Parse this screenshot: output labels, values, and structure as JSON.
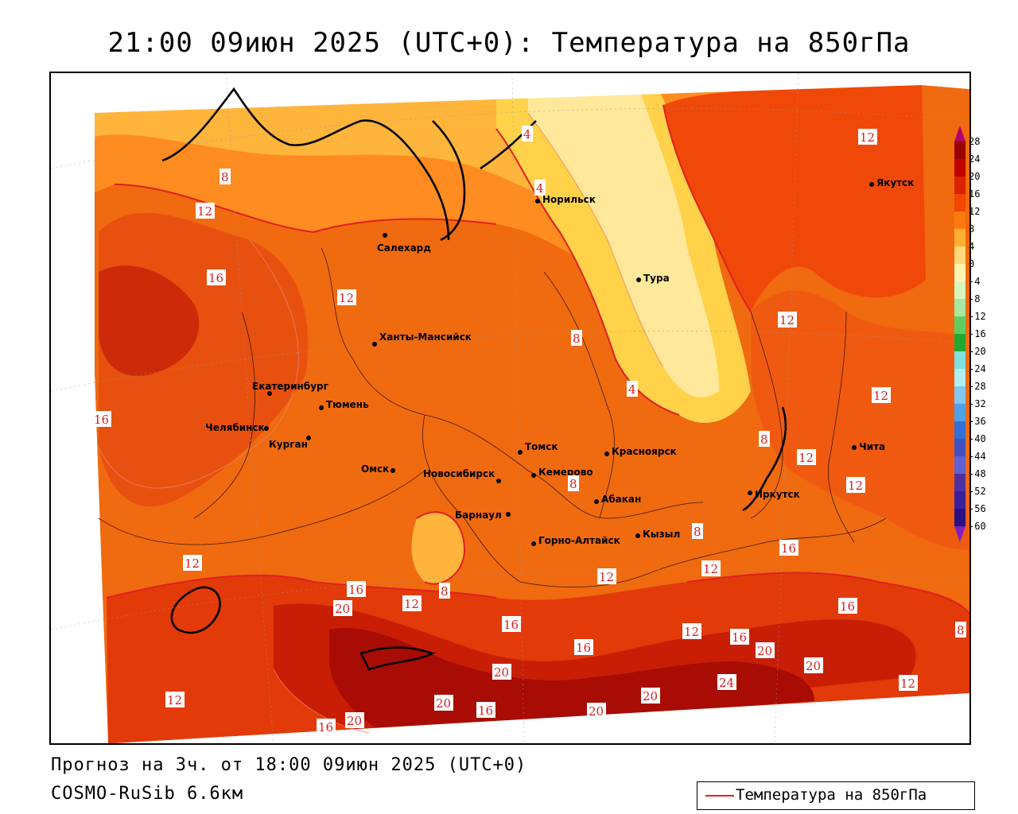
{
  "title": "21:00 09июн 2025 (UTC+0): Температура на 850гПа",
  "footer": {
    "forecast": "Прогноз на 3ч. от 18:00 09июн 2025 (UTC+0)",
    "model": "COSMO-RuSib 6.6км"
  },
  "legend": {
    "label": "Температура на 850гПа",
    "color": "#e02020"
  },
  "colorbar": {
    "ticks": [
      "28",
      "24",
      "20",
      "16",
      "12",
      "8",
      "4",
      "0",
      "-4",
      "-8",
      "-12",
      "-16",
      "-20",
      "-24",
      "-28",
      "-32",
      "-36",
      "-40",
      "-44",
      "-48",
      "-52",
      "-56",
      "-60"
    ],
    "colors": [
      "#b4006e",
      "#9a0000",
      "#c00000",
      "#dd2000",
      "#f04800",
      "#ff7a10",
      "#ffb030",
      "#ffd878",
      "#fff2b0",
      "#d8f5c0",
      "#a8e8a0",
      "#60cc60",
      "#20a830",
      "#80e0e0",
      "#b0eef0",
      "#80c8f0",
      "#50a0e8",
      "#3070d8",
      "#4050c0",
      "#6060d0",
      "#5030a0",
      "#3820a0",
      "#2a1080",
      "#8020c0"
    ]
  },
  "cities": [
    {
      "name": "Норильск"
    },
    {
      "name": "Якутск"
    },
    {
      "name": "Салехард"
    },
    {
      "name": "Тура"
    },
    {
      "name": "Ханты-Мансийск"
    },
    {
      "name": "Екатеринбург"
    },
    {
      "name": "Тюмень"
    },
    {
      "name": "Челябинск"
    },
    {
      "name": "Курган"
    },
    {
      "name": "Омск"
    },
    {
      "name": "Новосибирск"
    },
    {
      "name": "Томск"
    },
    {
      "name": "Кемерово"
    },
    {
      "name": "Красноярск"
    },
    {
      "name": "Барнаул"
    },
    {
      "name": "Абакан"
    },
    {
      "name": "Горно-Алтайск"
    },
    {
      "name": "Кызыл"
    },
    {
      "name": "Иркутск"
    },
    {
      "name": "Чита"
    }
  ],
  "isotherm_labels": [
    "4",
    "4",
    "8",
    "12",
    "16",
    "12",
    "8",
    "4",
    "8",
    "12",
    "16",
    "12",
    "8",
    "12",
    "12",
    "12",
    "16",
    "12",
    "8",
    "16",
    "12",
    "20",
    "8",
    "16",
    "16",
    "20",
    "12",
    "12",
    "16",
    "12",
    "20",
    "20",
    "16",
    "20",
    "24",
    "20",
    "20",
    "16",
    "20",
    "12",
    "16",
    "8",
    "12"
  ]
}
